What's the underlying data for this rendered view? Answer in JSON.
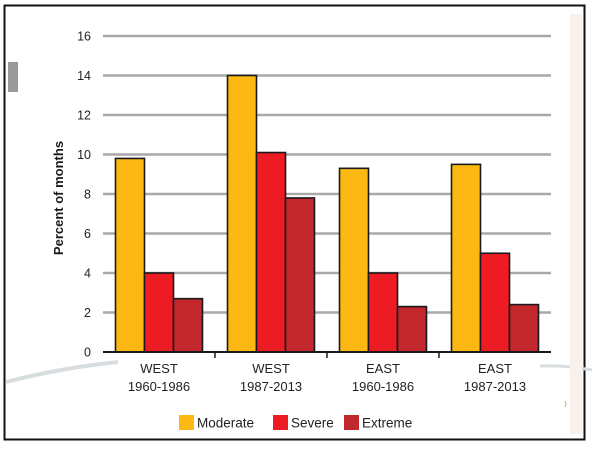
{
  "chart_data": {
    "type": "bar",
    "ylabel": "Percent of months",
    "ylim": [
      0,
      16
    ],
    "yticks": [
      0,
      2,
      4,
      6,
      8,
      10,
      12,
      14,
      16
    ],
    "grid": true,
    "legend_position": "bottom",
    "categories": [
      {
        "line1": "WEST",
        "line2": "1960-1986"
      },
      {
        "line1": "WEST",
        "line2": "1987-2013"
      },
      {
        "line1": "EAST",
        "line2": "1960-1986"
      },
      {
        "line1": "EAST",
        "line2": "1987-2013"
      }
    ],
    "series": [
      {
        "name": "Moderate",
        "color": "#fdb913",
        "values": [
          9.8,
          14.0,
          9.3,
          9.5
        ]
      },
      {
        "name": "Severe",
        "color": "#ed1c24",
        "values": [
          4.0,
          10.1,
          4.0,
          5.0
        ]
      },
      {
        "name": "Extreme",
        "color": "#c1272d",
        "values": [
          2.7,
          7.8,
          2.3,
          2.4
        ]
      }
    ]
  }
}
